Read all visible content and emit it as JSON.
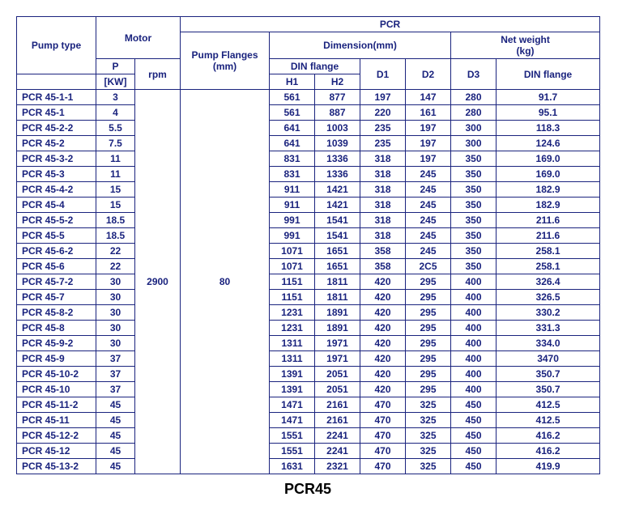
{
  "style": {
    "border_color": "#1a237e",
    "text_color": "#1a237e",
    "caption_color": "#000000",
    "background": "#ffffff",
    "fontsize_cell": 12,
    "fontsize_caption": 18,
    "font_family": "Arial"
  },
  "headers": {
    "pump_type": "Pump type",
    "motor": "Motor",
    "pcr": "PCR",
    "pump_flanges": "Pump Flanges",
    "pump_flanges_unit": "(mm)",
    "dimension": "Dimension(mm)",
    "net_weight": "Net weight",
    "net_weight_unit": "(kg)",
    "p": "P",
    "p_unit": "[KW]",
    "rpm": "rpm",
    "din_flange": "DIN flange",
    "h1": "H1",
    "h2": "H2",
    "d1": "D1",
    "d2": "D2",
    "d3": "D3",
    "din_flange_nw": "DIN flange"
  },
  "shared": {
    "rpm": "2900",
    "pump_flanges": "80"
  },
  "rows": [
    {
      "type": "PCR 45-1-1",
      "p": "3",
      "h1": "561",
      "h2": "877",
      "d1": "197",
      "d2": "147",
      "d3": "280",
      "nw": "91.7"
    },
    {
      "type": "PCR 45-1",
      "p": "4",
      "h1": "561",
      "h2": "887",
      "d1": "220",
      "d2": "161",
      "d3": "280",
      "nw": "95.1"
    },
    {
      "type": "PCR 45-2-2",
      "p": "5.5",
      "h1": "641",
      "h2": "1003",
      "d1": "235",
      "d2": "197",
      "d3": "300",
      "nw": "118.3"
    },
    {
      "type": "PCR 45-2",
      "p": "7.5",
      "h1": "641",
      "h2": "1039",
      "d1": "235",
      "d2": "197",
      "d3": "300",
      "nw": "124.6"
    },
    {
      "type": "PCR 45-3-2",
      "p": "11",
      "h1": "831",
      "h2": "1336",
      "d1": "318",
      "d2": "197",
      "d3": "350",
      "nw": "169.0"
    },
    {
      "type": "PCR 45-3",
      "p": "11",
      "h1": "831",
      "h2": "1336",
      "d1": "318",
      "d2": "245",
      "d3": "350",
      "nw": "169.0"
    },
    {
      "type": "PCR 45-4-2",
      "p": "15",
      "h1": "911",
      "h2": "1421",
      "d1": "318",
      "d2": "245",
      "d3": "350",
      "nw": "182.9"
    },
    {
      "type": "PCR 45-4",
      "p": "15",
      "h1": "911",
      "h2": "1421",
      "d1": "318",
      "d2": "245",
      "d3": "350",
      "nw": "182.9"
    },
    {
      "type": "PCR 45-5-2",
      "p": "18.5",
      "h1": "991",
      "h2": "1541",
      "d1": "318",
      "d2": "245",
      "d3": "350",
      "nw": "211.6"
    },
    {
      "type": "PCR 45-5",
      "p": "18.5",
      "h1": "991",
      "h2": "1541",
      "d1": "318",
      "d2": "245",
      "d3": "350",
      "nw": "211.6"
    },
    {
      "type": "PCR 45-6-2",
      "p": "22",
      "h1": "1071",
      "h2": "1651",
      "d1": "358",
      "d2": "245",
      "d3": "350",
      "nw": "258.1"
    },
    {
      "type": "PCR 45-6",
      "p": "22",
      "h1": "1071",
      "h2": "1651",
      "d1": "358",
      "d2": "2C5",
      "d3": "350",
      "nw": "258.1"
    },
    {
      "type": "PCR 45-7-2",
      "p": "30",
      "h1": "1151",
      "h2": "1811",
      "d1": "420",
      "d2": "295",
      "d3": "400",
      "nw": "326.4"
    },
    {
      "type": "PCR 45-7",
      "p": "30",
      "h1": "1151",
      "h2": "1811",
      "d1": "420",
      "d2": "295",
      "d3": "400",
      "nw": "326.5"
    },
    {
      "type": "PCR 45-8-2",
      "p": "30",
      "h1": "1231",
      "h2": "1891",
      "d1": "420",
      "d2": "295",
      "d3": "400",
      "nw": "330.2"
    },
    {
      "type": "PCR 45-8",
      "p": "30",
      "h1": "1231",
      "h2": "1891",
      "d1": "420",
      "d2": "295",
      "d3": "400",
      "nw": "331.3"
    },
    {
      "type": "PCR 45-9-2",
      "p": "30",
      "h1": "1311",
      "h2": "1971",
      "d1": "420",
      "d2": "295",
      "d3": "400",
      "nw": "334.0"
    },
    {
      "type": "PCR 45-9",
      "p": "37",
      "h1": "1311",
      "h2": "1971",
      "d1": "420",
      "d2": "295",
      "d3": "400",
      "nw": "3470"
    },
    {
      "type": "PCR 45-10-2",
      "p": "37",
      "h1": "1391",
      "h2": "2051",
      "d1": "420",
      "d2": "295",
      "d3": "400",
      "nw": "350.7"
    },
    {
      "type": "PCR 45-10",
      "p": "37",
      "h1": "1391",
      "h2": "2051",
      "d1": "420",
      "d2": "295",
      "d3": "400",
      "nw": "350.7"
    },
    {
      "type": "PCR 45-11-2",
      "p": "45",
      "h1": "1471",
      "h2": "2161",
      "d1": "470",
      "d2": "325",
      "d3": "450",
      "nw": "412.5"
    },
    {
      "type": "PCR 45-11",
      "p": "45",
      "h1": "1471",
      "h2": "2161",
      "d1": "470",
      "d2": "325",
      "d3": "450",
      "nw": "412.5"
    },
    {
      "type": "PCR 45-12-2",
      "p": "45",
      "h1": "1551",
      "h2": "2241",
      "d1": "470",
      "d2": "325",
      "d3": "450",
      "nw": "416.2"
    },
    {
      "type": "PCR 45-12",
      "p": "45",
      "h1": "1551",
      "h2": "2241",
      "d1": "470",
      "d2": "325",
      "d3": "450",
      "nw": "416.2"
    },
    {
      "type": "PCR 45-13-2",
      "p": "45",
      "h1": "1631",
      "h2": "2321",
      "d1": "470",
      "d2": "325",
      "d3": "450",
      "nw": "419.9"
    }
  ],
  "caption": "PCR45"
}
